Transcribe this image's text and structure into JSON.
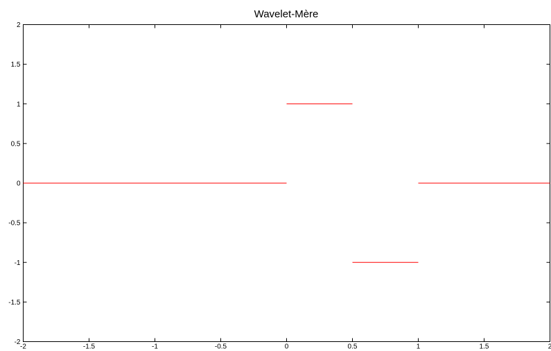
{
  "chart_data": {
    "type": "line",
    "title": "Wavelet-Mère",
    "xlabel": "",
    "ylabel": "",
    "xlim": [
      -2,
      2
    ],
    "ylim": [
      -2,
      2
    ],
    "grid": false,
    "xticks": [
      "-2",
      "-1.5",
      "-1",
      "-0.5",
      "0",
      "0.5",
      "1",
      "1.5",
      "2"
    ],
    "yticks": [
      "2",
      "1.5",
      "1",
      "0.5",
      "0",
      "-0.5",
      "-1",
      "-1.5",
      "-2"
    ],
    "series": [
      {
        "color": "#ff0000",
        "segments": [
          {
            "x": [
              -2,
              0
            ],
            "y": [
              0,
              0
            ]
          },
          {
            "x": [
              0,
              0.5
            ],
            "y": [
              1,
              1
            ]
          },
          {
            "x": [
              0.5,
              1
            ],
            "y": [
              -1,
              -1
            ]
          },
          {
            "x": [
              1,
              2
            ],
            "y": [
              0,
              0
            ]
          }
        ]
      }
    ]
  }
}
